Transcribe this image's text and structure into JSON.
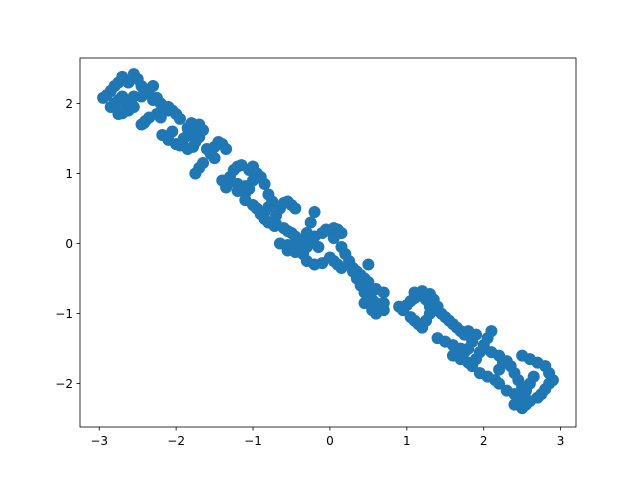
{
  "chart_data": {
    "type": "scatter",
    "title": "",
    "xlabel": "",
    "ylabel": "",
    "xlim": [
      -3.25,
      3.2
    ],
    "ylim": [
      -2.62,
      2.65
    ],
    "grid": false,
    "legend": "none",
    "marker_color": "#1f77b4",
    "x_ticks": [
      -3,
      -2,
      -1,
      0,
      1,
      2,
      3
    ],
    "y_ticks": [
      -2,
      -1,
      0,
      1,
      2
    ],
    "x_tick_labels": [
      "−3",
      "−2",
      "−1",
      "0",
      "1",
      "2",
      "3"
    ],
    "y_tick_labels": [
      "−2",
      "−1",
      "0",
      "1",
      "2"
    ],
    "series": [
      {
        "name": "",
        "x": [
          -2.95,
          -2.9,
          -2.85,
          -2.8,
          -2.75,
          -2.7,
          -2.85,
          -2.8,
          -2.75,
          -2.7,
          -2.65,
          -2.75,
          -2.7,
          -2.62,
          -2.55,
          -2.62,
          -2.55,
          -2.5,
          -2.45,
          -2.55,
          -2.6,
          -2.66,
          -2.7,
          -2.45,
          -2.4,
          -2.35,
          -2.3,
          -2.45,
          -2.4,
          -2.35,
          -2.42,
          -2.3,
          -2.25,
          -2.2,
          -2.15,
          -2.1,
          -2.25,
          -2.2,
          -2.15,
          -2.1,
          -2.05,
          -2.0,
          -1.95,
          -2.18,
          -2.05,
          -2.1,
          -2.0,
          -1.9,
          -1.85,
          -1.8,
          -1.75,
          -1.95,
          -1.85,
          -1.78,
          -1.75,
          -1.7,
          -1.85,
          -1.8,
          -1.7,
          -1.65,
          -1.6,
          -1.55,
          -1.5,
          -1.75,
          -1.7,
          -1.65,
          -1.55,
          -1.5,
          -1.45,
          -1.4,
          -1.35,
          -1.3,
          -1.25,
          -1.2,
          -1.15,
          -1.4,
          -1.3,
          -1.2,
          -1.1,
          -1.35,
          -1.2,
          -1.1,
          -1.05,
          -1.0,
          -1.05,
          -1.0,
          -0.95,
          -0.9,
          -0.85,
          -0.8,
          -0.75,
          -1.1,
          -1.0,
          -0.95,
          -0.85,
          -0.8,
          -0.75,
          -0.9,
          -0.85,
          -0.8,
          -0.72,
          -0.7,
          -0.65,
          -0.6,
          -0.55,
          -0.5,
          -0.45,
          -0.7,
          -0.6,
          -0.55,
          -0.5,
          -0.45,
          -0.4,
          -0.65,
          -0.55,
          -0.5,
          -0.4,
          -0.35,
          -0.3,
          -0.25,
          -0.2,
          -0.55,
          -0.45,
          -0.35,
          -0.3,
          -0.25,
          -0.2,
          -0.15,
          -0.1,
          -0.05,
          0.0,
          0.05,
          0.1,
          0.15,
          -0.3,
          -0.2,
          -0.1,
          0.0,
          0.05,
          0.1,
          0.15,
          0.05,
          0.15,
          0.2,
          0.25,
          0.3,
          0.35,
          0.4,
          0.45,
          0.5,
          0.3,
          0.35,
          0.4,
          0.45,
          0.5,
          0.55,
          0.6,
          0.65,
          0.7,
          0.5,
          0.45,
          0.55,
          0.6,
          0.65,
          0.7,
          0.4,
          0.5,
          0.6,
          0.7,
          0.9,
          0.95,
          1.0,
          1.05,
          1.1,
          1.15,
          1.2,
          1.25,
          1.3,
          1.05,
          1.1,
          1.15,
          1.2,
          1.25,
          1.3,
          1.35,
          1.1,
          1.2,
          1.3,
          1.35,
          1.4,
          1.45,
          1.5,
          1.55,
          1.6,
          1.65,
          1.7,
          1.75,
          1.8,
          1.4,
          1.5,
          1.6,
          1.7,
          1.75,
          1.8,
          1.85,
          1.9,
          1.6,
          1.7,
          1.8,
          1.9,
          1.95,
          2.0,
          2.05,
          2.1,
          1.85,
          1.95,
          2.05,
          2.15,
          2.2,
          2.25,
          2.0,
          2.1,
          2.2,
          2.3,
          2.35,
          2.4,
          2.45,
          2.5,
          2.2,
          2.3,
          2.4,
          2.5,
          2.55,
          2.6,
          2.65,
          2.4,
          2.5,
          2.55,
          2.6,
          2.7,
          2.75,
          2.8,
          2.85,
          2.9,
          2.5,
          2.6,
          2.7,
          2.8,
          2.85
        ],
        "y": [
          2.08,
          2.12,
          2.18,
          2.25,
          2.3,
          2.38,
          1.95,
          2.0,
          2.05,
          2.1,
          2.05,
          1.85,
          1.88,
          1.9,
          1.95,
          2.3,
          2.42,
          2.35,
          2.25,
          2.1,
          2.0,
          1.92,
          1.86,
          2.1,
          2.15,
          2.2,
          2.25,
          1.7,
          1.75,
          1.8,
          1.72,
          2.05,
          2.08,
          2.0,
          1.95,
          1.9,
          1.85,
          1.8,
          1.9,
          1.95,
          1.9,
          1.85,
          1.78,
          1.55,
          1.6,
          1.48,
          1.42,
          1.5,
          1.55,
          1.6,
          1.62,
          1.4,
          1.35,
          1.38,
          1.45,
          1.52,
          1.65,
          1.72,
          1.7,
          1.62,
          1.35,
          1.28,
          1.22,
          1.0,
          1.08,
          1.15,
          1.3,
          1.38,
          1.45,
          1.42,
          1.35,
          0.95,
          1.05,
          1.1,
          1.12,
          0.9,
          0.88,
          0.85,
          0.82,
          0.8,
          0.75,
          0.72,
          0.78,
          0.9,
          1.05,
          1.1,
          1.0,
          0.95,
          0.85,
          0.7,
          0.6,
          0.62,
          0.55,
          0.5,
          0.45,
          0.52,
          0.58,
          0.42,
          0.35,
          0.3,
          0.25,
          0.4,
          0.5,
          0.58,
          0.6,
          0.55,
          0.5,
          0.28,
          0.22,
          0.18,
          0.15,
          0.1,
          0.05,
          0.0,
          -0.02,
          -0.05,
          -0.08,
          -0.1,
          0.15,
          0.3,
          0.45,
          -0.1,
          -0.12,
          -0.15,
          -0.05,
          0.05,
          0.1,
          -0.05,
          0.15,
          0.2,
          0.18,
          0.22,
          0.2,
          0.15,
          -0.25,
          -0.3,
          -0.28,
          -0.2,
          -0.25,
          -0.3,
          -0.35,
          0.08,
          -0.05,
          -0.15,
          -0.25,
          -0.35,
          -0.4,
          -0.45,
          -0.5,
          -0.55,
          -0.4,
          -0.5,
          -0.6,
          -0.7,
          -0.75,
          -0.8,
          -0.85,
          -0.9,
          -0.95,
          -0.3,
          -0.85,
          -0.95,
          -1.0,
          -0.9,
          -0.85,
          -0.55,
          -0.6,
          -0.65,
          -0.7,
          -0.9,
          -0.95,
          -0.88,
          -0.82,
          -0.78,
          -0.72,
          -0.75,
          -0.8,
          -0.9,
          -1.05,
          -1.1,
          -1.15,
          -1.2,
          -1.1,
          -1.0,
          -0.95,
          -0.7,
          -0.68,
          -0.72,
          -0.8,
          -0.9,
          -1.0,
          -1.05,
          -1.1,
          -1.15,
          -1.2,
          -1.25,
          -1.3,
          -1.25,
          -1.35,
          -1.4,
          -1.45,
          -1.5,
          -1.55,
          -1.5,
          -1.4,
          -1.3,
          -1.6,
          -1.65,
          -1.7,
          -1.65,
          -1.55,
          -1.45,
          -1.35,
          -1.25,
          -1.75,
          -1.85,
          -1.9,
          -1.95,
          -1.8,
          -1.7,
          -1.5,
          -1.55,
          -1.6,
          -1.68,
          -1.75,
          -1.85,
          -1.95,
          -2.05,
          -2.0,
          -2.1,
          -2.15,
          -2.2,
          -2.1,
          -2.0,
          -1.9,
          -2.3,
          -2.35,
          -2.3,
          -2.25,
          -2.2,
          -2.15,
          -2.08,
          -2.0,
          -1.95,
          -1.6,
          -1.65,
          -1.7,
          -1.75,
          -1.85
        ]
      }
    ]
  }
}
